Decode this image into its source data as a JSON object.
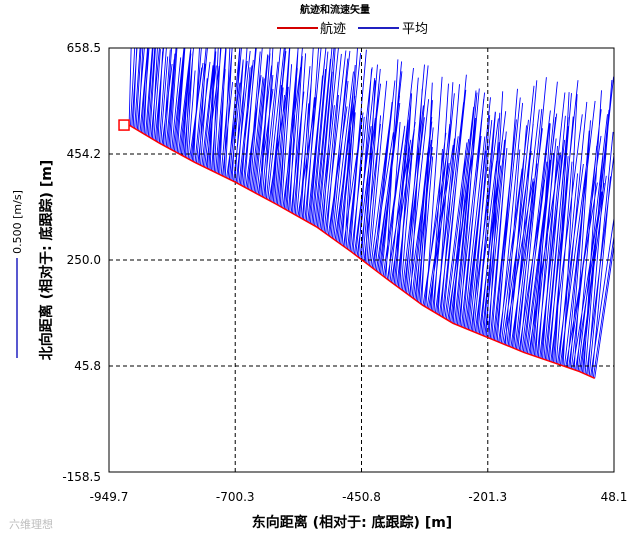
{
  "chart_data": {
    "type": "line",
    "title": "航迹和流速矢量",
    "xlabel": "东向距离 (相对于: 底跟踪) [m]",
    "ylabel": "北向距离 (相对于: 底跟踪) [m]",
    "xlim": [
      -949.7,
      48.1
    ],
    "ylim": [
      -158.5,
      658.5
    ],
    "x_ticks": [
      "-949.7",
      "-700.3",
      "-450.8",
      "-201.3",
      "48.1"
    ],
    "y_ticks": [
      "658.5",
      "454.2",
      "250.0",
      "45.8",
      "-158.5"
    ],
    "grid": true,
    "legend_position": "top",
    "vector_scale_label": "0.500 [m/s]",
    "series": [
      {
        "name": "航迹",
        "color": "#ff0000",
        "x": [
          -910,
          -850,
          -780,
          -700,
          -620,
          -540,
          -470,
          -400,
          -330,
          -270,
          -200,
          -130,
          -70,
          -20,
          10
        ],
        "y": [
          510,
          475,
          438,
          400,
          358,
          314,
          265,
          213,
          163,
          128,
          100,
          72,
          52,
          35,
          22
        ]
      },
      {
        "name": "平均",
        "color": "#0000ff",
        "type": "vectors",
        "scale_per_mps": 500,
        "vectors": {
          "u": [
            0.02,
            0.03,
            0.04,
            0.04,
            0.05,
            0.05,
            0.06,
            0.06,
            0.07,
            0.07,
            0.08,
            0.08,
            0.09,
            0.09,
            0.1
          ],
          "v": [
            0.36,
            0.4,
            0.44,
            0.48,
            0.54,
            0.58,
            0.62,
            0.66,
            0.7,
            0.74,
            0.78,
            0.82,
            0.86,
            0.9,
            0.92
          ]
        }
      }
    ],
    "start_marker": {
      "x": -920,
      "y": 510,
      "color": "#ff0000"
    }
  },
  "watermark": "六维理想"
}
